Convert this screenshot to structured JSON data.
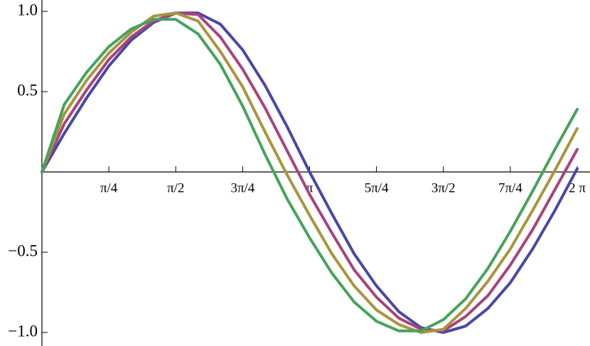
{
  "chart_data": {
    "type": "line",
    "x": [
      0,
      0.2618,
      0.5236,
      0.7854,
      1.0472,
      1.309,
      1.5708,
      1.8326,
      2.0944,
      2.3562,
      2.618,
      2.8798,
      3.1416,
      3.4034,
      3.6652,
      3.927,
      4.1888,
      4.4506,
      4.7124,
      4.9742,
      5.236,
      5.4978,
      5.7596,
      6.0214,
      6.2832
    ],
    "series": [
      {
        "color": "#4848a6",
        "values": [
          0,
          0.24,
          0.46,
          0.66,
          0.82,
          0.93,
          0.99,
          0.99,
          0.92,
          0.76,
          0.54,
          0.28,
          0,
          -0.26,
          -0.51,
          -0.71,
          -0.87,
          -0.97,
          -1.0,
          -0.96,
          -0.85,
          -0.69,
          -0.48,
          -0.24,
          0.02
        ]
      },
      {
        "color": "#a8437c",
        "values": [
          0,
          0.3,
          0.51,
          0.7,
          0.84,
          0.94,
          0.99,
          0.98,
          0.84,
          0.64,
          0.4,
          0.13,
          -0.14,
          -0.38,
          -0.61,
          -0.78,
          -0.91,
          -0.98,
          -0.99,
          -0.9,
          -0.77,
          -0.58,
          -0.36,
          -0.11,
          0.14
        ]
      },
      {
        "color": "#a8953f",
        "values": [
          0,
          0.36,
          0.57,
          0.74,
          0.87,
          0.97,
          0.99,
          0.94,
          0.75,
          0.53,
          0.25,
          -0.02,
          -0.27,
          -0.51,
          -0.71,
          -0.86,
          -0.95,
          -1.0,
          -0.98,
          -0.85,
          -0.68,
          -0.48,
          -0.24,
          0.01,
          0.27
        ]
      },
      {
        "color": "#45a35e",
        "values": [
          0,
          0.42,
          0.62,
          0.78,
          0.89,
          0.95,
          0.95,
          0.86,
          0.67,
          0.41,
          0.11,
          -0.17,
          -0.41,
          -0.63,
          -0.81,
          -0.93,
          -0.99,
          -0.99,
          -0.92,
          -0.79,
          -0.6,
          -0.37,
          -0.12,
          0.14,
          0.39
        ]
      }
    ],
    "xlim": [
      0,
      6.2832
    ],
    "ylim": [
      -1.05,
      1.05
    ],
    "xticks": [
      {
        "value": 0.7854,
        "label": "π/4"
      },
      {
        "value": 1.5708,
        "label": "π/2"
      },
      {
        "value": 2.3562,
        "label": "3π/4"
      },
      {
        "value": 3.1416,
        "label": "π"
      },
      {
        "value": 3.927,
        "label": "5π/4"
      },
      {
        "value": 4.7124,
        "label": "3π/2"
      },
      {
        "value": 5.4978,
        "label": "7π/4"
      },
      {
        "value": 6.2832,
        "label": "2 π"
      }
    ],
    "yticks": [
      {
        "value": -1,
        "label": "−1.0"
      },
      {
        "value": -0.5,
        "label": "−0.5"
      },
      0.5,
      {
        "value": 1,
        "label": "1.0"
      }
    ]
  }
}
